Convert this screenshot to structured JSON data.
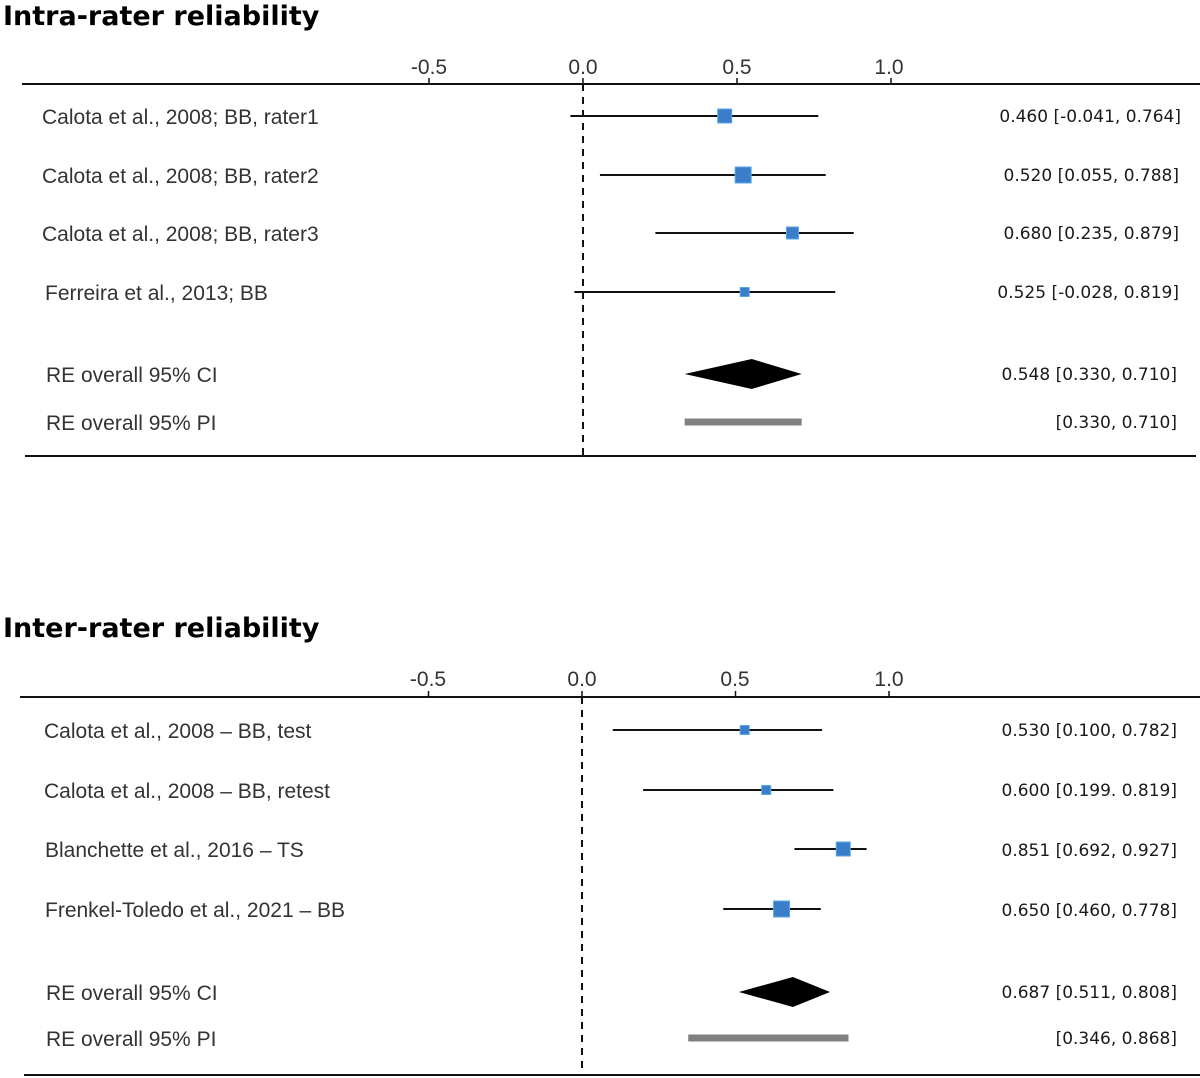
{
  "chart_data": [
    {
      "type": "forest",
      "title": "Intra-rater reliability",
      "xlim": [
        -0.5,
        1.0
      ],
      "ticks": [
        -0.5,
        0.0,
        0.5,
        1.0
      ],
      "tick_labels": [
        "-0.5",
        "0.0",
        "0.5",
        "1.0"
      ],
      "reference_line": 0.0,
      "studies": [
        {
          "label": "Calota et al., 2008; BB, rater1",
          "estimate": 0.46,
          "lower": -0.041,
          "upper": 0.764,
          "value_text": "0.460 [-0.041, 0.764]",
          "weight": "medium"
        },
        {
          "label": "Calota et al., 2008; BB, rater2",
          "estimate": 0.52,
          "lower": 0.055,
          "upper": 0.788,
          "value_text": "0.520 [0.055, 0.788]",
          "weight": "large"
        },
        {
          "label": "Calota et al., 2008; BB, rater3",
          "estimate": 0.68,
          "lower": 0.235,
          "upper": 0.879,
          "value_text": "0.680 [0.235, 0.879]",
          "weight": "small"
        },
        {
          "label": "Ferreira et al., 2013; BB",
          "estimate": 0.525,
          "lower": -0.028,
          "upper": 0.819,
          "value_text": "0.525 [-0.028, 0.819]",
          "weight": "xsmall"
        }
      ],
      "overall_ci": {
        "label": "RE overall 95% CI",
        "estimate": 0.548,
        "lower": 0.33,
        "upper": 0.71,
        "value_text": "0.548 [0.330, 0.710]"
      },
      "overall_pi": {
        "label": "RE overall 95% PI",
        "lower": 0.33,
        "upper": 0.71,
        "value_text": "[0.330, 0.710]"
      }
    },
    {
      "type": "forest",
      "title": "Inter-rater reliability",
      "xlim": [
        -0.5,
        1.0
      ],
      "ticks": [
        -0.5,
        0.0,
        0.5,
        1.0
      ],
      "tick_labels": [
        "-0.5",
        "0.0",
        "0.5",
        "1.0"
      ],
      "reference_line": 0.0,
      "studies": [
        {
          "label": "Calota et al., 2008 – BB, test",
          "estimate": 0.53,
          "lower": 0.1,
          "upper": 0.782,
          "value_text": "0.530 [0.100, 0.782]",
          "weight": "xsmall"
        },
        {
          "label": "Calota et al., 2008 – BB, retest",
          "estimate": 0.6,
          "lower": 0.199,
          "upper": 0.819,
          "value_text": "0.600 [0.199. 0.819]",
          "weight": "xsmall"
        },
        {
          "label": "Blanchette et al., 2016 – TS",
          "estimate": 0.851,
          "lower": 0.692,
          "upper": 0.927,
          "value_text": "0.851 [0.692, 0.927]",
          "weight": "medium"
        },
        {
          "label": "Frenkel-Toledo et al., 2021 – BB",
          "estimate": 0.65,
          "lower": 0.46,
          "upper": 0.778,
          "value_text": "0.650 [0.460, 0.778]",
          "weight": "large"
        }
      ],
      "overall_ci": {
        "label": "RE overall 95% CI",
        "estimate": 0.687,
        "lower": 0.511,
        "upper": 0.808,
        "value_text": "0.687 [0.511, 0.808]"
      },
      "overall_pi": {
        "label": "RE overall 95% PI",
        "lower": 0.346,
        "upper": 0.868,
        "value_text": "[0.346, 0.868]"
      }
    }
  ],
  "colors": {
    "marker": "#3a7dc8",
    "marker_edge": "#5aa6e8",
    "line": "#111111",
    "diamond": "#000000",
    "pi_bar": "#808080"
  }
}
